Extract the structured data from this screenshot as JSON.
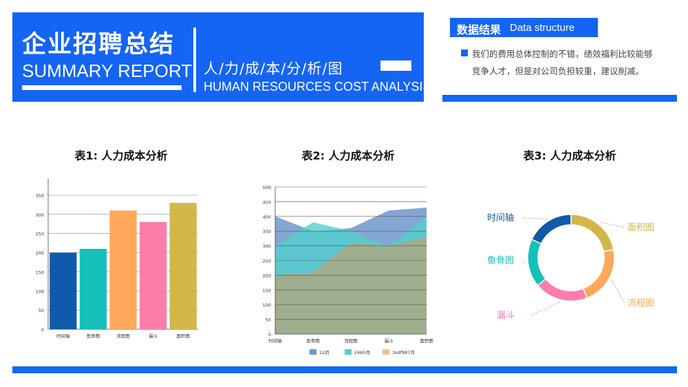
{
  "header": {
    "title_cn": "企业招聘总结",
    "title_en": "SUMMARY REPORT",
    "subtitle_cn": "人/力/成/本/分/析/图",
    "subtitle_en": "HUMAN RESOURCES COST ANALYSIS"
  },
  "result": {
    "label_cn": "数据结果",
    "label_en": "Data structure",
    "line1": "我们的费用总体控制的不错，绩效福利比较能够",
    "line2": "竞争人才，但是对公司负担较重，建议削减。"
  },
  "colors": {
    "accent": "#1565f4",
    "bar": [
      "#0f5aab",
      "#14c0b8",
      "#fda85a",
      "#fb7eab",
      "#d3b64a"
    ],
    "area": [
      "#6e97cb",
      "#53d0cd",
      "#f1c198",
      "#9fae8e"
    ]
  },
  "chart_data": [
    {
      "type": "bar",
      "title": "表1: 人力成本分析",
      "categories": [
        "时间轴",
        "鱼骨图",
        "流程图",
        "漏斗",
        "面积图"
      ],
      "values": [
        200,
        210,
        310,
        280,
        330
      ],
      "ylim": [
        0,
        350
      ],
      "yticks": [
        0,
        50,
        100,
        150,
        200,
        250,
        300,
        350
      ],
      "grid": true
    },
    {
      "type": "area",
      "title": "表2: 人力成本分析",
      "categories": [
        "时间轴",
        "鱼骨图",
        "流程图",
        "漏斗",
        "面积图"
      ],
      "series": [
        {
          "name": "12月",
          "values": [
            400,
            350,
            360,
            420,
            430
          ]
        },
        {
          "name": "2465月",
          "values": [
            300,
            380,
            350,
            300,
            400
          ]
        },
        {
          "name": "3sdf987月",
          "values": [
            200,
            210,
            310,
            250,
            330
          ]
        },
        {
          "values": [
            200,
            210,
            310,
            300,
            330
          ]
        }
      ],
      "ylim": [
        0,
        500
      ],
      "yticks": [
        0,
        50,
        100,
        150,
        200,
        250,
        300,
        350,
        400,
        450,
        500
      ],
      "grid": true,
      "legend": "bottom"
    },
    {
      "type": "pie",
      "title": "表3: 人力成本分析",
      "categories": [
        "面积图",
        "流程图",
        "漏斗",
        "鱼骨图",
        "时间轴"
      ],
      "values": [
        22,
        22,
        20,
        18,
        18
      ],
      "colors": [
        "#d3b64a",
        "#fda85a",
        "#fb7eab",
        "#14c0b8",
        "#0f5aab"
      ],
      "legend": "callout-labels"
    }
  ]
}
